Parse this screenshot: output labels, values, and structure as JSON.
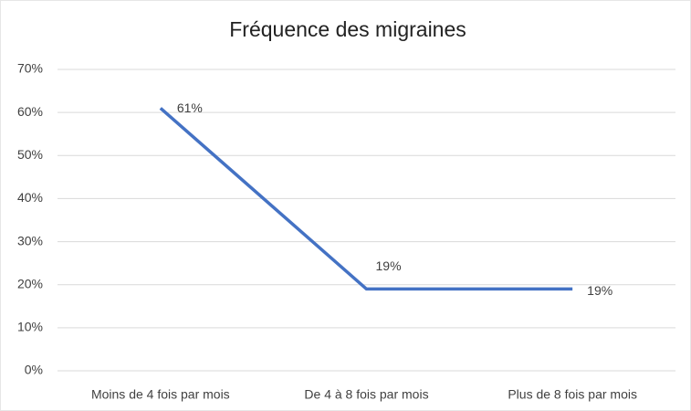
{
  "chart_data": {
    "type": "line",
    "title": "Fréquence des migraines",
    "categories": [
      "Moins de 4 fois par mois",
      "De 4 à 8 fois par mois",
      "Plus de 8 fois par mois"
    ],
    "values": [
      61,
      19,
      19
    ],
    "value_labels": [
      "61%",
      "19%",
      "19%"
    ],
    "color": "#4472c4",
    "ylim": [
      0,
      70
    ],
    "yticks": [
      {
        "value": 0,
        "label": "0%"
      },
      {
        "value": 10,
        "label": "10%"
      },
      {
        "value": 20,
        "label": "20%"
      },
      {
        "value": 30,
        "label": "30%"
      },
      {
        "value": 40,
        "label": "40%"
      },
      {
        "value": 50,
        "label": "50%"
      },
      {
        "value": 60,
        "label": "60%"
      },
      {
        "value": 70,
        "label": "70%"
      }
    ],
    "grid": true
  }
}
